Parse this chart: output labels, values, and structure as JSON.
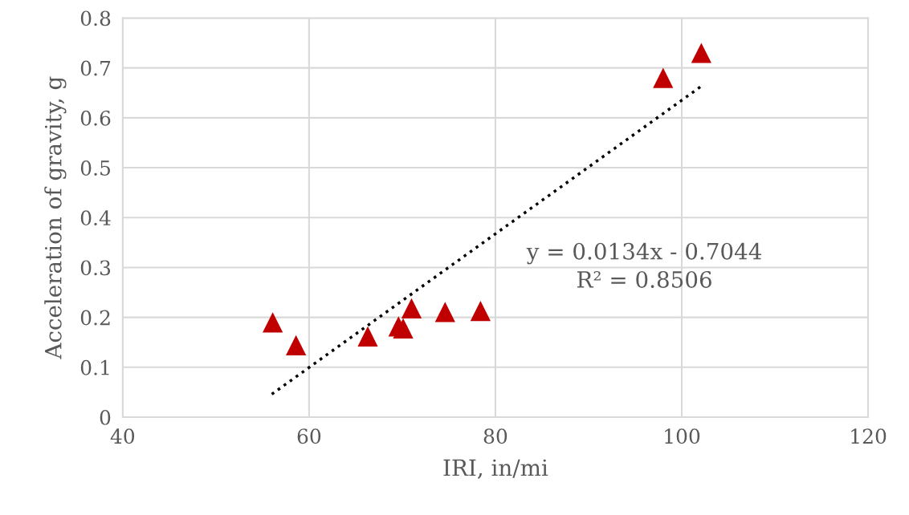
{
  "chart_data": {
    "type": "scatter",
    "xlabel": "IRI, in/mi",
    "ylabel": "Acceleration of gravity, g",
    "series": [
      {
        "color": "#c00000",
        "marker": "triangle",
        "x": [
          56.1,
          58.6,
          66.3,
          69.6,
          70.1,
          71.0,
          74.6,
          78.4,
          98.0,
          102.1
        ],
        "values": [
          0.19,
          0.144,
          0.162,
          0.182,
          0.178,
          0.218,
          0.211,
          0.213,
          0.68,
          0.73
        ]
      },
      {
        "type": "line",
        "color": "#000000",
        "marker": "none",
        "line_style": "dotted",
        "x": [
          56,
          102
        ],
        "values": [
          0.046,
          0.662
        ]
      }
    ],
    "annotations": [
      "y = 0.0134x - 0.7044",
      "R² = 0.8506"
    ],
    "xlim": [
      40,
      120
    ],
    "xticks": [
      40,
      60,
      80,
      100,
      120
    ],
    "ylim": [
      0,
      0.8
    ],
    "yticks": [
      0,
      0.1,
      0.2,
      0.3,
      0.4,
      0.5,
      0.6,
      0.7,
      0.8
    ],
    "grid": true,
    "legend": false
  }
}
